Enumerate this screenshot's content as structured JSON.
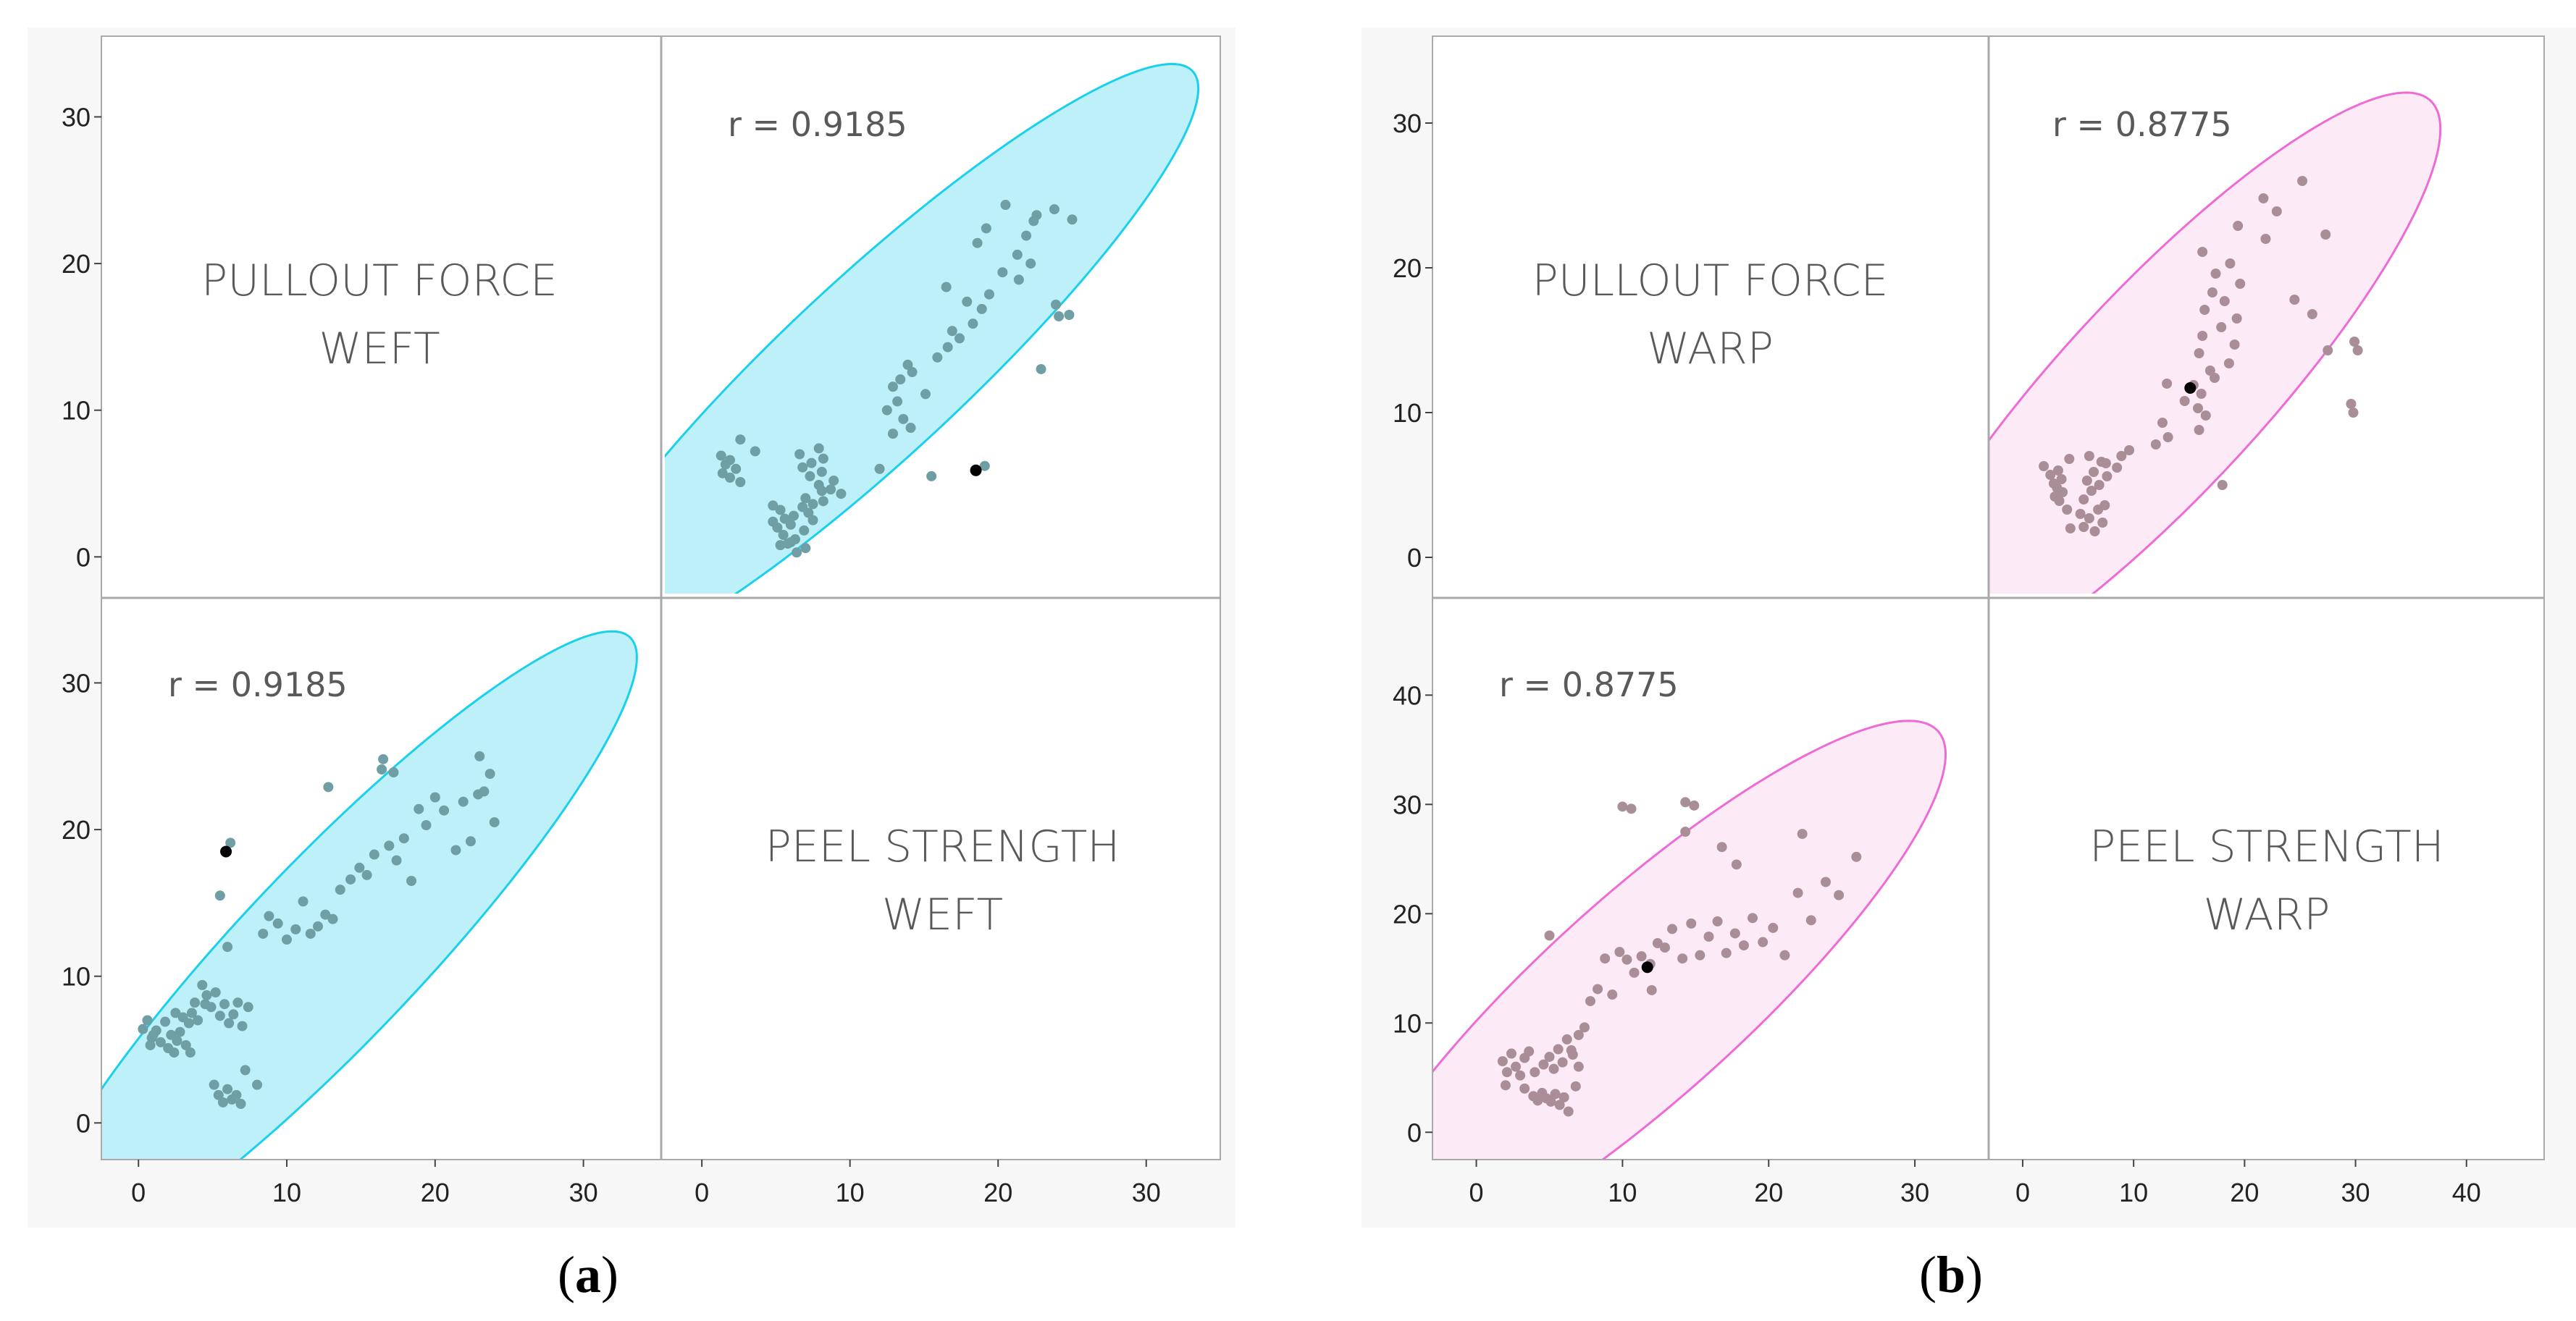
{
  "chart_data": [
    {
      "id": "a",
      "type": "scatter-matrix",
      "caption_letter": "a",
      "variables": [
        {
          "name": "pullout",
          "label_lines": [
            "PULLOUT FORCE",
            "WEFT"
          ]
        },
        {
          "name": "peel",
          "label_lines": [
            "PEEL STRENGTH",
            "WEFT"
          ]
        }
      ],
      "r_label": "r = 0.9185",
      "ellipse_color": "#1ad0ec",
      "ellipse_fill": "#bdf0f8",
      "point_color": "#6f9ea4",
      "highlight_color": "#000000",
      "row_ticks": [
        [
          0,
          10,
          20,
          30
        ],
        [
          0,
          10,
          20,
          30
        ]
      ],
      "col_ticks": [
        [
          0,
          10,
          20,
          30
        ],
        [
          0,
          10,
          20,
          30
        ]
      ],
      "ellipse": {
        "mx": 13.0,
        "my": 11.7,
        "sx": 6.8,
        "sy": 7.2,
        "r": 0.9185,
        "k": 3.03
      },
      "points": [
        [
          0.3,
          6.4
        ],
        [
          0.6,
          7.0
        ],
        [
          0.9,
          5.8
        ],
        [
          1.2,
          6.3
        ],
        [
          1.5,
          5.5
        ],
        [
          1.8,
          6.9
        ],
        [
          2.0,
          5.1
        ],
        [
          2.2,
          6.0
        ],
        [
          2.4,
          4.8
        ],
        [
          2.6,
          5.6
        ],
        [
          2.8,
          6.2
        ],
        [
          3.0,
          7.2
        ],
        [
          3.2,
          5.3
        ],
        [
          3.4,
          6.8
        ],
        [
          3.6,
          7.5
        ],
        [
          3.8,
          8.2
        ],
        [
          4.0,
          7.0
        ],
        [
          4.3,
          9.4
        ],
        [
          4.6,
          8.7
        ],
        [
          4.9,
          7.9
        ],
        [
          5.2,
          8.9
        ],
        [
          5.5,
          7.3
        ],
        [
          5.8,
          8.1
        ],
        [
          6.1,
          6.8
        ],
        [
          6.4,
          7.4
        ],
        [
          6.7,
          8.2
        ],
        [
          7.0,
          6.6
        ],
        [
          7.4,
          7.9
        ],
        [
          5.1,
          2.6
        ],
        [
          5.4,
          1.9
        ],
        [
          5.7,
          1.4
        ],
        [
          6.0,
          2.3
        ],
        [
          6.3,
          1.6
        ],
        [
          6.6,
          1.9
        ],
        [
          6.9,
          1.3
        ],
        [
          7.2,
          3.6
        ],
        [
          8.0,
          2.6
        ],
        [
          8.4,
          12.9
        ],
        [
          8.8,
          14.1
        ],
        [
          9.4,
          13.6
        ],
        [
          10.0,
          12.5
        ],
        [
          10.6,
          13.2
        ],
        [
          11.1,
          15.1
        ],
        [
          11.6,
          12.9
        ],
        [
          12.1,
          13.4
        ],
        [
          12.6,
          14.2
        ],
        [
          13.1,
          13.9
        ],
        [
          13.6,
          15.9
        ],
        [
          14.3,
          16.6
        ],
        [
          14.9,
          17.4
        ],
        [
          15.4,
          16.9
        ],
        [
          15.9,
          18.3
        ],
        [
          16.4,
          24.1
        ],
        [
          16.9,
          18.9
        ],
        [
          17.4,
          17.9
        ],
        [
          17.9,
          19.4
        ],
        [
          18.4,
          16.5
        ],
        [
          18.9,
          21.4
        ],
        [
          19.4,
          20.3
        ],
        [
          20.0,
          22.2
        ],
        [
          20.6,
          21.3
        ],
        [
          21.4,
          18.6
        ],
        [
          21.9,
          21.9
        ],
        [
          22.4,
          19.2
        ],
        [
          22.9,
          22.4
        ],
        [
          23.3,
          22.6
        ],
        [
          23.7,
          23.8
        ],
        [
          24.0,
          20.5
        ],
        [
          12.8,
          22.9
        ],
        [
          6.2,
          19.1
        ],
        [
          23.0,
          25.0
        ],
        [
          16.5,
          24.8
        ],
        [
          17.2,
          23.9
        ],
        [
          5.5,
          15.5
        ],
        [
          6.0,
          12.0
        ],
        [
          1.0,
          6.0
        ],
        [
          2.5,
          7.5
        ],
        [
          3.5,
          4.8
        ],
        [
          4.5,
          8.1
        ],
        [
          0.8,
          5.3
        ]
      ],
      "highlight": [
        [
          5.9,
          18.5
        ]
      ]
    },
    {
      "id": "b",
      "type": "scatter-matrix",
      "caption_letter": "b",
      "variables": [
        {
          "name": "pullout",
          "label_lines": [
            "PULLOUT FORCE",
            "WARP"
          ]
        },
        {
          "name": "peel",
          "label_lines": [
            "PEEL STRENGTH",
            "WARP"
          ]
        }
      ],
      "r_label": "r = 0.8775",
      "ellipse_color": "#ee6bd6",
      "ellipse_fill": "#fcebf7",
      "point_color": "#a98d97",
      "highlight_color": "#000000",
      "row_ticks": [
        [
          0,
          10,
          20,
          30
        ],
        [
          0,
          10,
          20,
          30,
          40
        ]
      ],
      "col_ticks": [
        [
          0,
          10,
          20,
          30
        ],
        [
          0,
          10,
          20,
          30,
          40
        ]
      ],
      "ellipse": {
        "mx": 11.5,
        "my": 12.5,
        "sx": 6.8,
        "sy": 8.3,
        "r": 0.8775,
        "k": 3.03
      },
      "points": [
        [
          1.8,
          6.5
        ],
        [
          2.1,
          5.5
        ],
        [
          2.4,
          7.2
        ],
        [
          2.7,
          6.0
        ],
        [
          3.0,
          5.2
        ],
        [
          3.3,
          6.8
        ],
        [
          3.6,
          7.4
        ],
        [
          3.9,
          3.3
        ],
        [
          4.2,
          2.9
        ],
        [
          4.5,
          3.6
        ],
        [
          4.8,
          3.1
        ],
        [
          5.1,
          2.8
        ],
        [
          5.4,
          3.5
        ],
        [
          5.7,
          2.5
        ],
        [
          6.0,
          3.2
        ],
        [
          6.3,
          1.9
        ],
        [
          4.6,
          6.2
        ],
        [
          5.0,
          6.9
        ],
        [
          5.3,
          5.8
        ],
        [
          5.6,
          7.6
        ],
        [
          5.9,
          6.4
        ],
        [
          6.2,
          8.5
        ],
        [
          6.6,
          7.1
        ],
        [
          7.0,
          8.9
        ],
        [
          7.4,
          9.6
        ],
        [
          7.8,
          12.0
        ],
        [
          8.3,
          13.1
        ],
        [
          8.8,
          15.9
        ],
        [
          9.3,
          12.6
        ],
        [
          9.8,
          16.5
        ],
        [
          10.3,
          15.8
        ],
        [
          10.8,
          14.6
        ],
        [
          11.3,
          16.1
        ],
        [
          11.9,
          15.4
        ],
        [
          12.4,
          17.3
        ],
        [
          12.9,
          16.9
        ],
        [
          13.4,
          18.6
        ],
        [
          14.1,
          15.9
        ],
        [
          14.7,
          19.1
        ],
        [
          15.3,
          16.2
        ],
        [
          15.9,
          17.9
        ],
        [
          16.5,
          19.3
        ],
        [
          17.1,
          16.4
        ],
        [
          17.7,
          18.2
        ],
        [
          18.3,
          17.1
        ],
        [
          18.9,
          19.6
        ],
        [
          19.6,
          17.4
        ],
        [
          20.3,
          18.7
        ],
        [
          21.1,
          16.2
        ],
        [
          22.0,
          21.9
        ],
        [
          22.9,
          19.4
        ],
        [
          23.9,
          22.9
        ],
        [
          24.8,
          21.7
        ],
        [
          26.0,
          25.2
        ],
        [
          10.0,
          29.8
        ],
        [
          10.6,
          29.6
        ],
        [
          14.3,
          30.2
        ],
        [
          14.9,
          29.9
        ],
        [
          5.0,
          18.0
        ],
        [
          6.5,
          7.5
        ],
        [
          22.3,
          27.3
        ],
        [
          17.8,
          24.5
        ],
        [
          16.8,
          26.1
        ],
        [
          14.3,
          27.5
        ],
        [
          3.3,
          4.0
        ],
        [
          4.0,
          5.5
        ],
        [
          2.0,
          4.3
        ],
        [
          6.8,
          4.2
        ],
        [
          7.0,
          6.0
        ],
        [
          12.0,
          13.0
        ]
      ],
      "highlight": [
        [
          11.7,
          15.1
        ]
      ]
    }
  ]
}
